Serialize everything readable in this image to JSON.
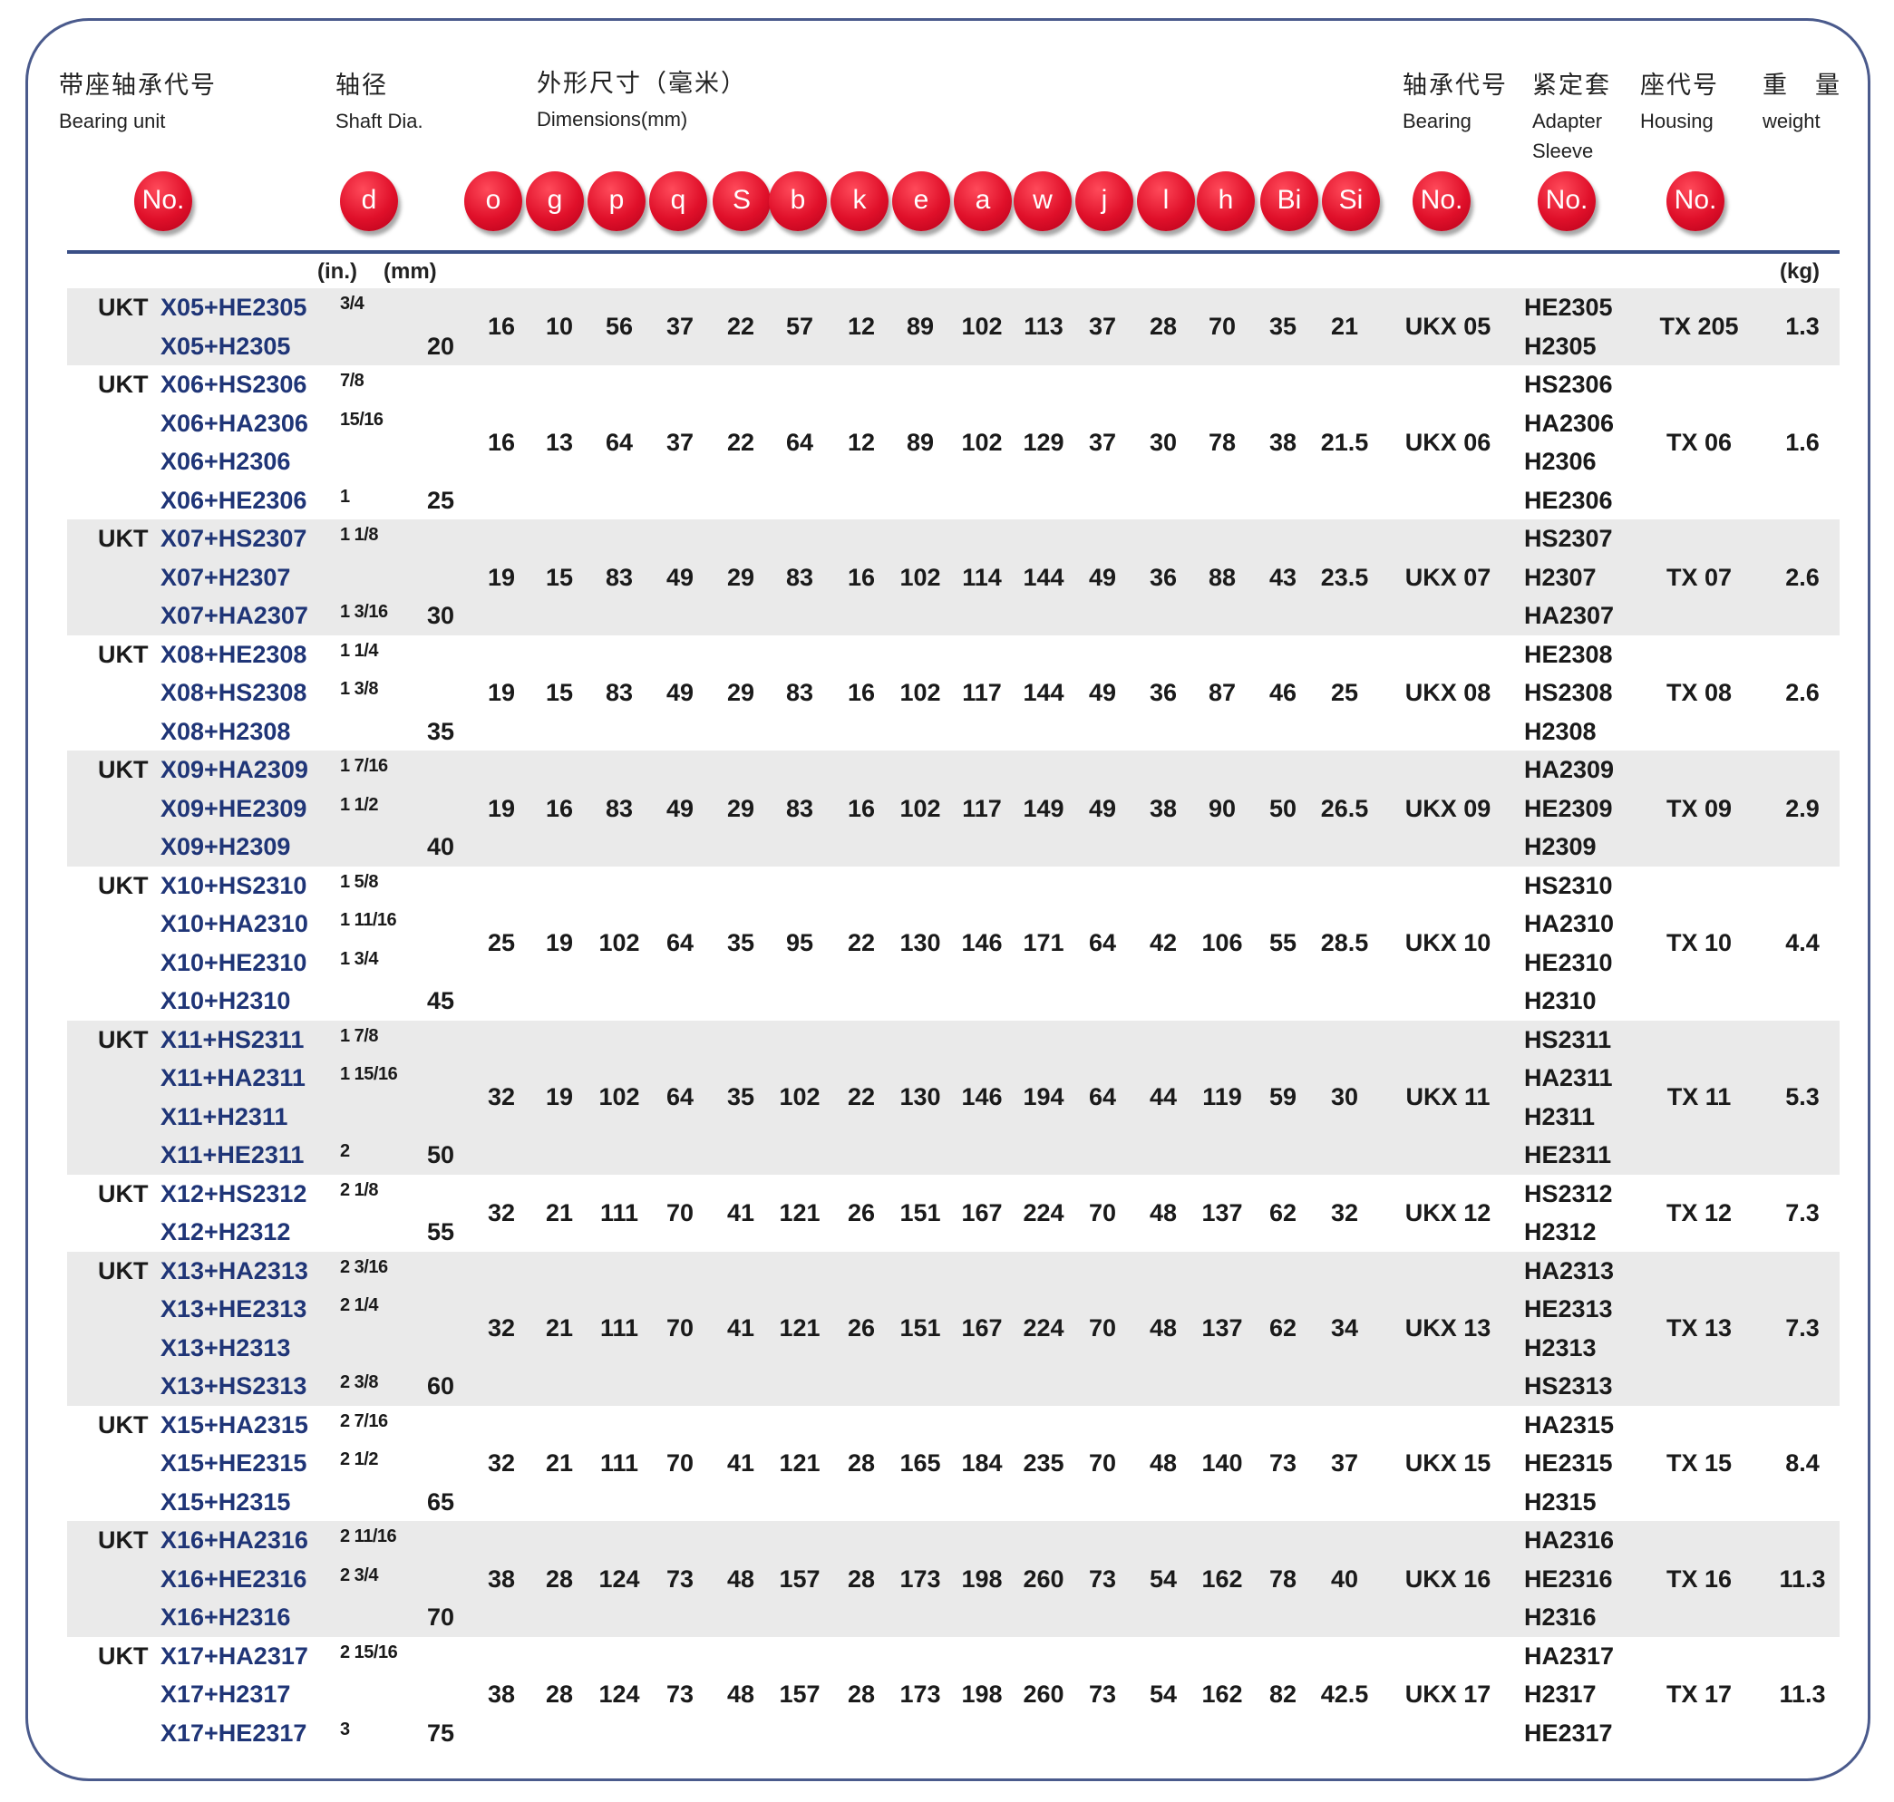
{
  "headers": {
    "unit": {
      "cn": "带座轴承代号",
      "en": "Bearing unit"
    },
    "shaft": {
      "cn": "轴径",
      "en": "Shaft Dia."
    },
    "dims": {
      "cn": "外形尺寸（毫米）",
      "en": "Dimensions(mm)"
    },
    "bearing": {
      "cn": "轴承代号",
      "en": "Bearing"
    },
    "sleeve": {
      "cn": "紧定套",
      "en": "Adapter Sleeve"
    },
    "housing": {
      "cn": "座代号",
      "en": "Housing"
    },
    "weight": {
      "cn": "重　量",
      "en": "weight"
    }
  },
  "badges": [
    "No.",
    "d",
    "o",
    "g",
    "p",
    "q",
    "S",
    "b",
    "k",
    "e",
    "a",
    "w",
    "j",
    "l",
    "h",
    "Bi",
    "Si",
    "No.",
    "No.",
    "No."
  ],
  "badge_color": "#e0102a",
  "units": {
    "in": "(in.)",
    "mm": "(mm)",
    "kg": "(kg)"
  },
  "prefix": "UKT",
  "groups": [
    {
      "units": [
        {
          "code": "X05+HE2305",
          "inch": "3/4"
        },
        {
          "code": "X05+H2305",
          "inch": ""
        }
      ],
      "mm": "20",
      "dims": [
        "16",
        "10",
        "56",
        "37",
        "22",
        "57",
        "12",
        "89",
        "102",
        "113",
        "37",
        "28",
        "70",
        "35",
        "21"
      ],
      "bearing": "UKX 05",
      "sleeves": [
        "HE2305",
        "H2305"
      ],
      "housing": "TX 205",
      "weight": "1.3"
    },
    {
      "units": [
        {
          "code": "X06+HS2306",
          "inch": "7/8"
        },
        {
          "code": "X06+HA2306",
          "inch": "15/16"
        },
        {
          "code": "X06+H2306",
          "inch": ""
        },
        {
          "code": "X06+HE2306",
          "inch": "1"
        }
      ],
      "mm": "25",
      "dims": [
        "16",
        "13",
        "64",
        "37",
        "22",
        "64",
        "12",
        "89",
        "102",
        "129",
        "37",
        "30",
        "78",
        "38",
        "21.5"
      ],
      "bearing": "UKX 06",
      "sleeves": [
        "HS2306",
        "HA2306",
        "H2306",
        "HE2306"
      ],
      "housing": "TX 06",
      "weight": "1.6"
    },
    {
      "units": [
        {
          "code": "X07+HS2307",
          "inch": "1 1/8"
        },
        {
          "code": "X07+H2307",
          "inch": ""
        },
        {
          "code": "X07+HA2307",
          "inch": "1 3/16"
        }
      ],
      "mm": "30",
      "dims": [
        "19",
        "15",
        "83",
        "49",
        "29",
        "83",
        "16",
        "102",
        "114",
        "144",
        "49",
        "36",
        "88",
        "43",
        "23.5"
      ],
      "bearing": "UKX 07",
      "sleeves": [
        "HS2307",
        "H2307",
        "HA2307"
      ],
      "housing": "TX 07",
      "weight": "2.6"
    },
    {
      "units": [
        {
          "code": "X08+HE2308",
          "inch": "1 1/4"
        },
        {
          "code": "X08+HS2308",
          "inch": "1 3/8"
        },
        {
          "code": "X08+H2308",
          "inch": ""
        }
      ],
      "mm": "35",
      "dims": [
        "19",
        "15",
        "83",
        "49",
        "29",
        "83",
        "16",
        "102",
        "117",
        "144",
        "49",
        "36",
        "87",
        "46",
        "25"
      ],
      "bearing": "UKX 08",
      "sleeves": [
        "HE2308",
        "HS2308",
        "H2308"
      ],
      "housing": "TX 08",
      "weight": "2.6"
    },
    {
      "units": [
        {
          "code": "X09+HA2309",
          "inch": "1 7/16"
        },
        {
          "code": "X09+HE2309",
          "inch": "1 1/2"
        },
        {
          "code": "X09+H2309",
          "inch": ""
        }
      ],
      "mm": "40",
      "dims": [
        "19",
        "16",
        "83",
        "49",
        "29",
        "83",
        "16",
        "102",
        "117",
        "149",
        "49",
        "38",
        "90",
        "50",
        "26.5"
      ],
      "bearing": "UKX 09",
      "sleeves": [
        "HA2309",
        "HE2309",
        "H2309"
      ],
      "housing": "TX 09",
      "weight": "2.9"
    },
    {
      "units": [
        {
          "code": "X10+HS2310",
          "inch": "1 5/8"
        },
        {
          "code": "X10+HA2310",
          "inch": "1 11/16"
        },
        {
          "code": "X10+HE2310",
          "inch": "1 3/4"
        },
        {
          "code": "X10+H2310",
          "inch": ""
        }
      ],
      "mm": "45",
      "dims": [
        "25",
        "19",
        "102",
        "64",
        "35",
        "95",
        "22",
        "130",
        "146",
        "171",
        "64",
        "42",
        "106",
        "55",
        "28.5"
      ],
      "bearing": "UKX 10",
      "sleeves": [
        "HS2310",
        "HA2310",
        "HE2310",
        "H2310"
      ],
      "housing": "TX 10",
      "weight": "4.4"
    },
    {
      "units": [
        {
          "code": "X11+HS2311",
          "inch": "1 7/8"
        },
        {
          "code": "X11+HA2311",
          "inch": "1 15/16"
        },
        {
          "code": "X11+H2311",
          "inch": ""
        },
        {
          "code": "X11+HE2311",
          "inch": "2"
        }
      ],
      "mm": "50",
      "dims": [
        "32",
        "19",
        "102",
        "64",
        "35",
        "102",
        "22",
        "130",
        "146",
        "194",
        "64",
        "44",
        "119",
        "59",
        "30"
      ],
      "bearing": "UKX 11",
      "sleeves": [
        "HS2311",
        "HA2311",
        "H2311",
        "HE2311"
      ],
      "housing": "TX 11",
      "weight": "5.3"
    },
    {
      "units": [
        {
          "code": "X12+HS2312",
          "inch": "2 1/8"
        },
        {
          "code": "X12+H2312",
          "inch": ""
        }
      ],
      "mm": "55",
      "dims": [
        "32",
        "21",
        "111",
        "70",
        "41",
        "121",
        "26",
        "151",
        "167",
        "224",
        "70",
        "48",
        "137",
        "62",
        "32"
      ],
      "bearing": "UKX 12",
      "sleeves": [
        "HS2312",
        "H2312"
      ],
      "housing": "TX 12",
      "weight": "7.3"
    },
    {
      "units": [
        {
          "code": "X13+HA2313",
          "inch": "2 3/16"
        },
        {
          "code": "X13+HE2313",
          "inch": "2 1/4"
        },
        {
          "code": "X13+H2313",
          "inch": ""
        },
        {
          "code": "X13+HS2313",
          "inch": "2 3/8"
        }
      ],
      "mm": "60",
      "dims": [
        "32",
        "21",
        "111",
        "70",
        "41",
        "121",
        "26",
        "151",
        "167",
        "224",
        "70",
        "48",
        "137",
        "62",
        "34"
      ],
      "bearing": "UKX 13",
      "sleeves": [
        "HA2313",
        "HE2313",
        "H2313",
        "HS2313"
      ],
      "housing": "TX 13",
      "weight": "7.3"
    },
    {
      "units": [
        {
          "code": "X15+HA2315",
          "inch": "2 7/16"
        },
        {
          "code": "X15+HE2315",
          "inch": "2 1/2"
        },
        {
          "code": "X15+H2315",
          "inch": ""
        }
      ],
      "mm": "65",
      "dims": [
        "32",
        "21",
        "111",
        "70",
        "41",
        "121",
        "28",
        "165",
        "184",
        "235",
        "70",
        "48",
        "140",
        "73",
        "37"
      ],
      "bearing": "UKX 15",
      "sleeves": [
        "HA2315",
        "HE2315",
        "H2315"
      ],
      "housing": "TX 15",
      "weight": "8.4"
    },
    {
      "units": [
        {
          "code": "X16+HA2316",
          "inch": "2 11/16"
        },
        {
          "code": "X16+HE2316",
          "inch": "2 3/4"
        },
        {
          "code": "X16+H2316",
          "inch": ""
        }
      ],
      "mm": "70",
      "dims": [
        "38",
        "28",
        "124",
        "73",
        "48",
        "157",
        "28",
        "173",
        "198",
        "260",
        "73",
        "54",
        "162",
        "78",
        "40"
      ],
      "bearing": "UKX 16",
      "sleeves": [
        "HA2316",
        "HE2316",
        "H2316"
      ],
      "housing": "TX 16",
      "weight": "11.3"
    },
    {
      "units": [
        {
          "code": "X17+HA2317",
          "inch": "2 15/16"
        },
        {
          "code": "X17+H2317",
          "inch": ""
        },
        {
          "code": "X17+HE2317",
          "inch": "3"
        }
      ],
      "mm": "75",
      "dims": [
        "38",
        "28",
        "124",
        "73",
        "48",
        "157",
        "28",
        "173",
        "198",
        "260",
        "73",
        "54",
        "162",
        "82",
        "42.5"
      ],
      "bearing": "UKX 17",
      "sleeves": [
        "HA2317",
        "H2317",
        "HE2317"
      ],
      "housing": "TX 17",
      "weight": "11.3"
    }
  ]
}
